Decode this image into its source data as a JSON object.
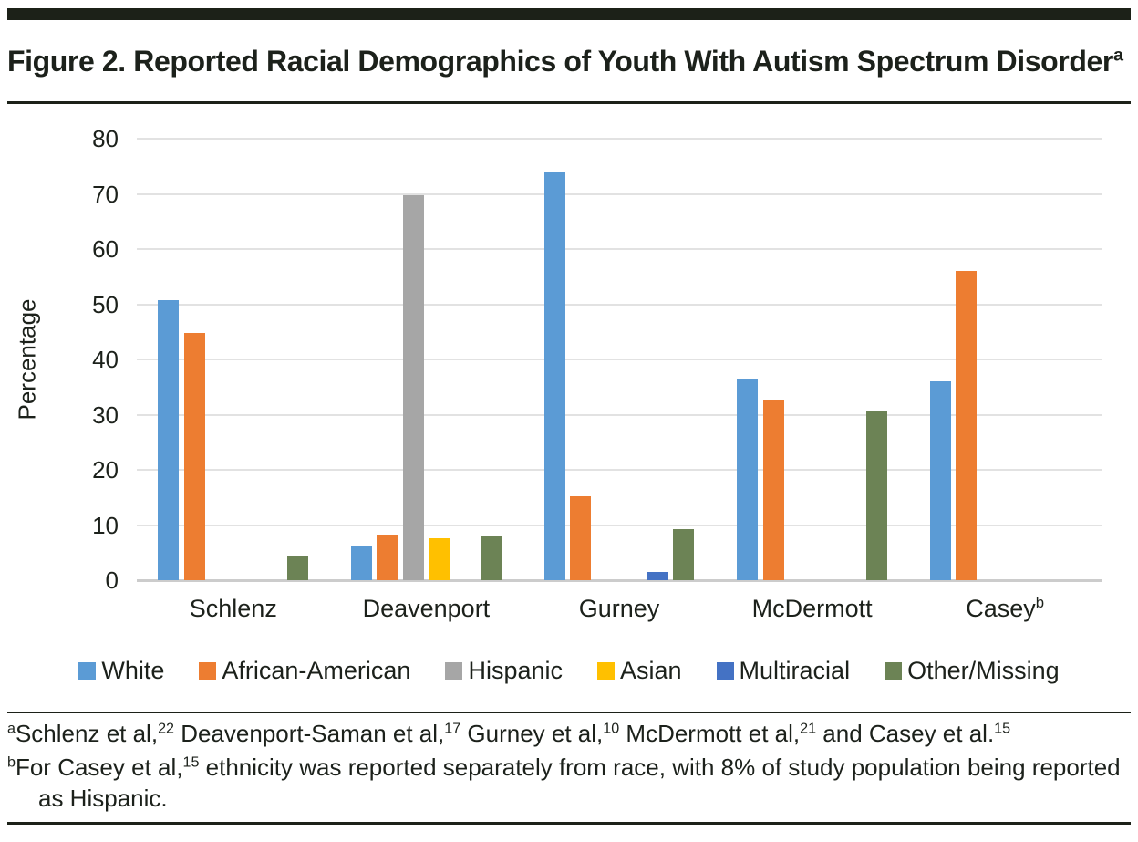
{
  "figure": {
    "title_segments": [
      {
        "text": "Figure 2. Reported Racial Demographics of Youth With Autism Spectrum Disorder"
      },
      {
        "text": "a",
        "sup": true
      }
    ],
    "footnote_a_segments": [
      {
        "text": "a",
        "sup": true
      },
      {
        "text": "Schlenz et al,"
      },
      {
        "text": "22",
        "sup": true
      },
      {
        "text": " Deavenport-Saman et al,"
      },
      {
        "text": "17",
        "sup": true
      },
      {
        "text": " Gurney et al,"
      },
      {
        "text": "10",
        "sup": true
      },
      {
        "text": " McDermott et al,"
      },
      {
        "text": "21",
        "sup": true
      },
      {
        "text": " and Casey et al."
      },
      {
        "text": "15",
        "sup": true
      }
    ],
    "footnote_b_segments": [
      {
        "text": "b",
        "sup": true
      },
      {
        "text": "For Casey et al,"
      },
      {
        "text": "15",
        "sup": true
      },
      {
        "text": " ethnicity was reported separately from race, with 8% of study population being reported as Hispanic."
      }
    ]
  },
  "chart_data": {
    "type": "bar",
    "title": "Figure 2. Reported Racial Demographics of Youth With Autism Spectrum Disorder",
    "xlabel": "",
    "ylabel": "Percentage",
    "ylim": [
      0,
      80
    ],
    "yticks": [
      0,
      10,
      20,
      30,
      40,
      50,
      60,
      70,
      80
    ],
    "grid": true,
    "legend_position": "bottom",
    "categories": [
      "Schlenz",
      "Deavenport",
      "Gurney",
      "McDermott",
      "Casey"
    ],
    "category_sups": [
      "",
      "",
      "",
      "",
      "b"
    ],
    "series": [
      {
        "name": "White",
        "color": "#5B9BD5",
        "values": [
          50.7,
          6.2,
          73.9,
          36.5,
          36.1
        ]
      },
      {
        "name": "African-American",
        "color": "#ED7D31",
        "values": [
          44.8,
          8.3,
          15.2,
          32.7,
          56.1
        ]
      },
      {
        "name": "Hispanic",
        "color": "#A6A6A6",
        "values": [
          0,
          69.8,
          0,
          0,
          0
        ]
      },
      {
        "name": "Asian",
        "color": "#FFC000",
        "values": [
          0,
          7.6,
          0,
          0,
          0
        ]
      },
      {
        "name": "Multiracial",
        "color": "#4472C4",
        "values": [
          0,
          0,
          1.5,
          0,
          0
        ]
      },
      {
        "name": "Other/Missing",
        "color": "#6C8355",
        "values": [
          4.4,
          7.9,
          9.2,
          30.8,
          0
        ]
      }
    ]
  }
}
